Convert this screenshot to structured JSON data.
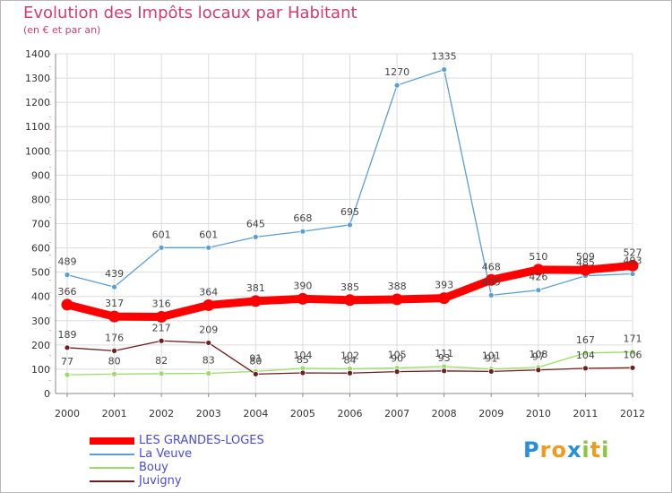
{
  "title": "Evolution des Impôts locaux par Habitant",
  "subtitle": "(en € et par an)",
  "logo": {
    "letters": [
      {
        "ch": "P",
        "color": "#2b8fd6"
      },
      {
        "ch": "r",
        "color": "#f29a1f"
      },
      {
        "ch": "o",
        "color": "#f29a1f"
      },
      {
        "ch": "x",
        "color": "#2b8fd6"
      },
      {
        "ch": "i",
        "color": "#8cc63f"
      },
      {
        "ch": "t",
        "color": "#f29a1f"
      },
      {
        "ch": "i",
        "color": "#8cc63f"
      }
    ]
  },
  "chart_data": {
    "type": "line",
    "title": "Evolution des Impôts locaux par Habitant",
    "subtitle": "(en € et par an)",
    "xlabel": "",
    "ylabel": "",
    "ylim": [
      0,
      1400
    ],
    "yticks": [
      0,
      100,
      200,
      300,
      400,
      500,
      600,
      700,
      800,
      900,
      1000,
      1100,
      1200,
      1300,
      1400
    ],
    "grid": true,
    "legend": "bottom-left",
    "x": [
      2000,
      2001,
      2002,
      2003,
      2004,
      2005,
      2006,
      2007,
      2008,
      2009,
      2010,
      2011,
      2012
    ],
    "series": [
      {
        "name": "LES GRANDES-LOGES",
        "color": "#ff0000",
        "emphasis": "thick",
        "values": [
          366,
          317,
          316,
          364,
          381,
          390,
          385,
          388,
          393,
          468,
          510,
          509,
          527
        ]
      },
      {
        "name": "La Veuve",
        "color": "#5a9fd4",
        "emphasis": "normal",
        "values": [
          489,
          439,
          601,
          601,
          645,
          668,
          695,
          1270,
          1335,
          405,
          426,
          485,
          493
        ]
      },
      {
        "name": "Bouy",
        "color": "#99dd66",
        "emphasis": "normal",
        "values": [
          77,
          80,
          82,
          83,
          91,
          104,
          102,
          105,
          111,
          101,
          108,
          167,
          171
        ]
      },
      {
        "name": "Juvigny",
        "color": "#6b1f1f",
        "emphasis": "normal",
        "values": [
          189,
          176,
          217,
          209,
          80,
          85,
          84,
          90,
          93,
          91,
          97,
          104,
          106
        ]
      }
    ]
  }
}
